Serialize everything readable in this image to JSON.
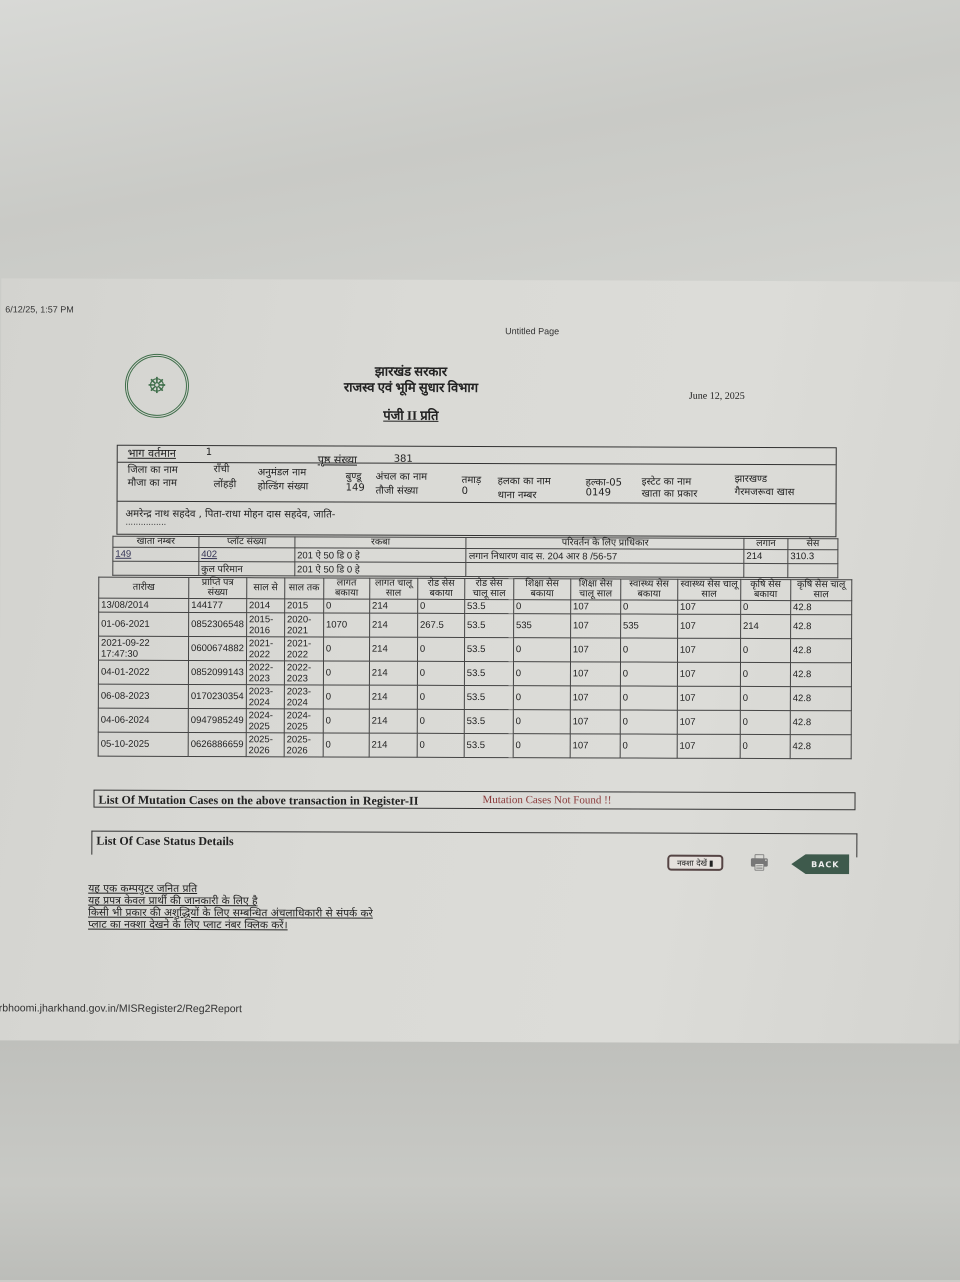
{
  "print_timestamp": "6/12/25, 1:57 PM",
  "page_title": "Untitled Page",
  "header": {
    "line1": "झारखंड सरकार",
    "line2": "राजस्व एवं भूमि सुधार विभाग",
    "line3": "पंजी II प्रति",
    "date": "June 12, 2025"
  },
  "info": {
    "bhag_label": "भाग वर्तमान",
    "bhag_value": "1",
    "prishth_label": "पृष्ठ संख्या",
    "prishth_value": "381",
    "jila_label": "जिला का नाम",
    "jila_value": "राँची",
    "anumandal_label": "अनुमंडल नाम",
    "anumandal_value": "बुण्डू",
    "anchal_label": "अंचल का नाम",
    "anchal_value": "तमाड़",
    "halka_label": "हलका का नाम",
    "halka_value": "हल्का-05",
    "estate_label": "इस्टेट का नाम",
    "estate_value": "झारखण्ड",
    "mauja_label": "मौजा का नाम",
    "mauja_value": "लोंहड़ी",
    "holding_label": "होल्डिंग संख्या",
    "holding_value": "149",
    "tauzi_label": "तौजी संख्या",
    "tauzi_value": "0",
    "thana_label": "थाना नम्बर",
    "thana_value": "0149",
    "khata_prakar_label": "खाता का प्रकार",
    "khata_prakar_value": "गैरमजरूवा खास",
    "owner": "अमरेन्द्र नाथ सहदेव , पिता-राधा मोहन दास सहदेव, जाति-",
    "owner_dots": "................"
  },
  "khata": {
    "headers": [
      "खाता नम्बर",
      "प्लॉट संख्या",
      "रकबा",
      "परिवर्तन के लिए प्राधिकार",
      "लगान",
      "सेस"
    ],
    "khata_no": "149",
    "plot_no": "402",
    "rakba": "201  ऐ  50  डि  0  हे",
    "authority": "लगान निधारण वाद स. 204 आर 8 /56-57",
    "lagan": "214",
    "ses": "310.3",
    "total_label": "कुल परिमान",
    "total_rakba": "201  ऐ  50  डि  0  हे"
  },
  "payments": {
    "headers": [
      "तारीख",
      "प्राप्ति पत्र संख्या",
      "साल से",
      "साल तक",
      "लागत बकाया",
      "लागत चालू साल",
      "रोड सेस बकाया",
      "रोड सेस चालू साल",
      "शिक्षा सेस बकाया",
      "शिक्षा सेस चालू साल",
      "स्वास्थ्य सेस बकाया",
      "स्वास्थ्य सेस चालू साल",
      "कृषि सेस बकाया",
      "कृषि सेस चालू साल"
    ],
    "rows": [
      [
        "13/08/2014",
        "144177",
        "2014",
        "2015",
        "0",
        "214",
        "0",
        "53.5",
        "0",
        "107",
        "0",
        "107",
        "0",
        "42.8"
      ],
      [
        "01-06-2021",
        "0852306548",
        "2015-2016",
        "2020-2021",
        "1070",
        "214",
        "267.5",
        "53.5",
        "535",
        "107",
        "535",
        "107",
        "214",
        "42.8"
      ],
      [
        "2021-09-22 17:47:30",
        "0600674882",
        "2021-2022",
        "2021-2022",
        "0",
        "214",
        "0",
        "53.5",
        "0",
        "107",
        "0",
        "107",
        "0",
        "42.8"
      ],
      [
        "04-01-2022",
        "0852099143",
        "2022-2023",
        "2022-2023",
        "0",
        "214",
        "0",
        "53.5",
        "0",
        "107",
        "0",
        "107",
        "0",
        "42.8"
      ],
      [
        "06-08-2023",
        "0170230354",
        "2023-2024",
        "2023-2024",
        "0",
        "214",
        "0",
        "53.5",
        "0",
        "107",
        "0",
        "107",
        "0",
        "42.8"
      ],
      [
        "04-06-2024",
        "0947985249",
        "2024-2025",
        "2024-2025",
        "0",
        "214",
        "0",
        "53.5",
        "0",
        "107",
        "0",
        "107",
        "0",
        "42.8"
      ],
      [
        "05-10-2025",
        "0626886659",
        "2025-2026",
        "2025-2026",
        "0",
        "214",
        "0",
        "53.5",
        "0",
        "107",
        "0",
        "107",
        "0",
        "42.8"
      ]
    ]
  },
  "mutation": {
    "label": "List Of Mutation Cases on the above transaction in Register-II",
    "status": "Mutation Cases Not Found !!",
    "status_color": "#8a3a3a"
  },
  "case_status": {
    "label": "List Of Case Status Details"
  },
  "buttons": {
    "map": "नक्शा देखें",
    "back": "BACK"
  },
  "notes": [
    "यह एक कम्पयुटर जनित प्रति",
    "यह प्रपत्र केवल प्रार्थी की जानकारी के लिए है",
    "किसी भी प्रकार की अशुद्धियों के लिए सम्बन्धित अंचलाधिकारी से संपर्क करे",
    "प्लाट का नक्शा देखने के लिए प्लाट नंबर क्लिक करें।"
  ],
  "url": "rbhoomi.jharkhand.gov.in/MISRegister2/Reg2Report"
}
